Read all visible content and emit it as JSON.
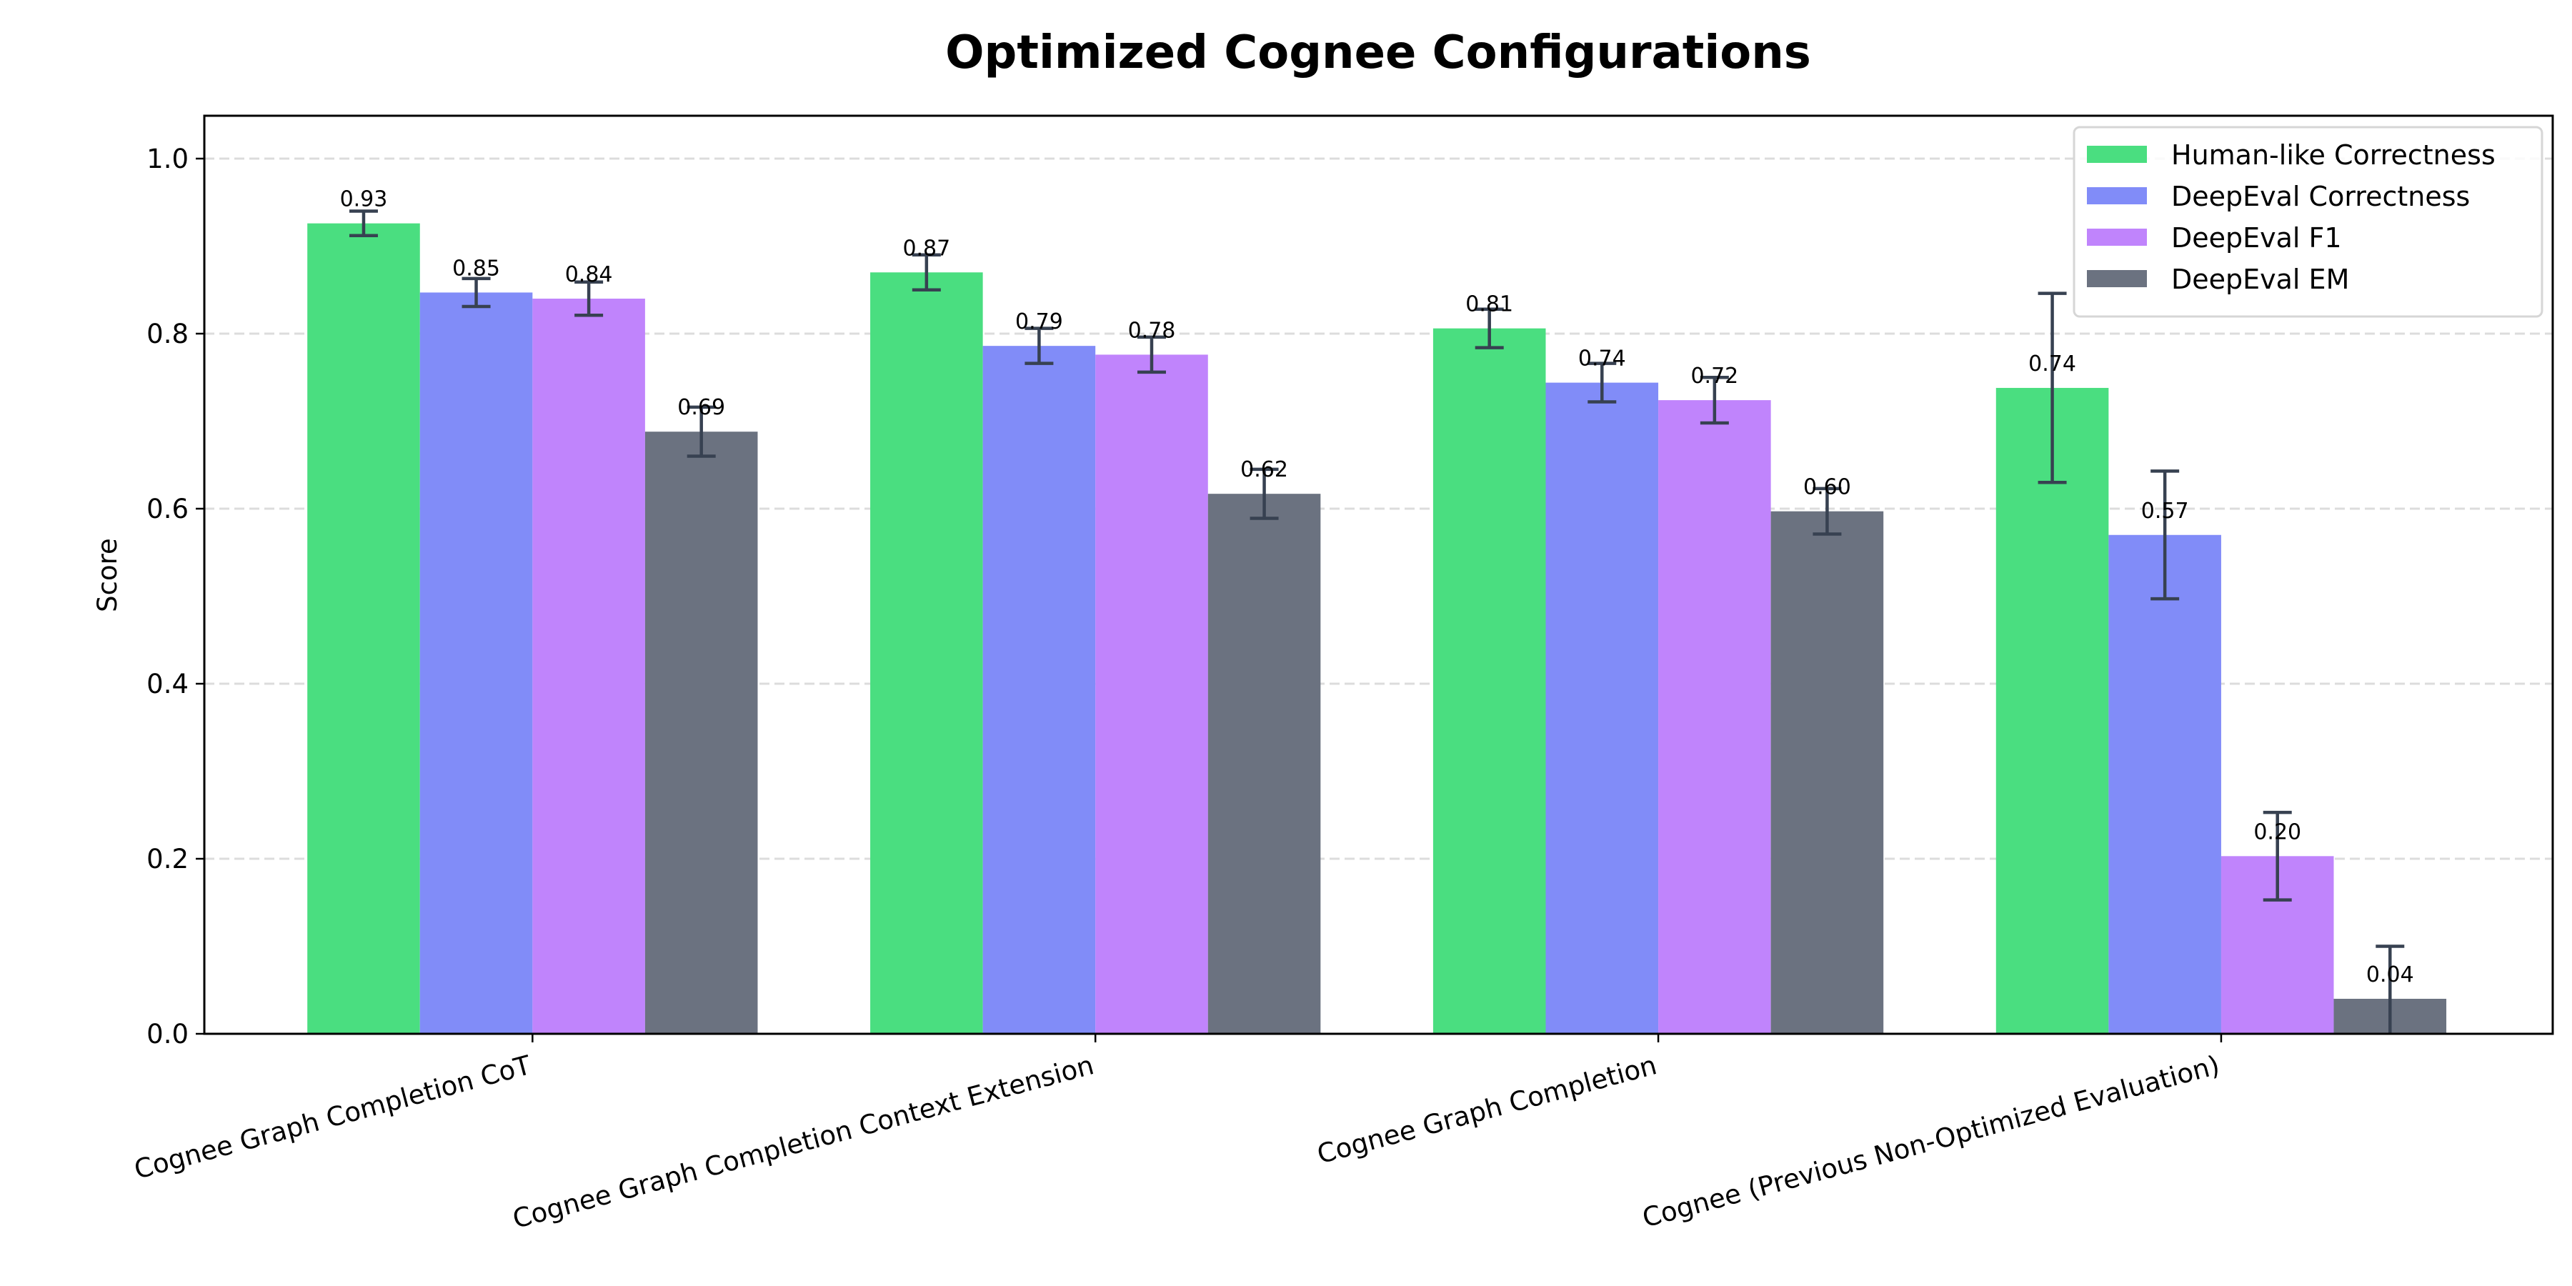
{
  "chart_data": {
    "type": "bar",
    "title": "Optimized Cognee Configurations",
    "xlabel": "",
    "ylabel": "Score",
    "ylim": [
      0,
      1.05
    ],
    "yticks": [
      "0.0",
      "0.2",
      "0.4",
      "0.6",
      "0.8",
      "1.0"
    ],
    "grid": "y-dashed",
    "legend_position": "top-right",
    "categories": [
      "Cognee Graph Completion CoT",
      "Cognee Graph Completion Context Extension",
      "Cognee Graph Completion",
      "Cognee (Previous Non-Optimized Evaluation)"
    ],
    "series": [
      {
        "name": "Human-like Correctness",
        "color": "#4ade80",
        "values": [
          0.926,
          0.87,
          0.806,
          0.738
        ],
        "errors": [
          0.014,
          0.02,
          0.022,
          0.108
        ],
        "labels": [
          "0.93",
          "0.87",
          "0.81",
          "0.74"
        ]
      },
      {
        "name": "DeepEval Correctness",
        "color": "#818cf8",
        "values": [
          0.847,
          0.786,
          0.744,
          0.57
        ],
        "errors": [
          0.016,
          0.02,
          0.022,
          0.073
        ],
        "labels": [
          "0.85",
          "0.79",
          "0.74",
          "0.57"
        ]
      },
      {
        "name": "DeepEval F1",
        "color": "#c084fc",
        "values": [
          0.84,
          0.776,
          0.724,
          0.203
        ],
        "errors": [
          0.019,
          0.02,
          0.026,
          0.05
        ],
        "labels": [
          "0.84",
          "0.78",
          "0.72",
          "0.20"
        ]
      },
      {
        "name": "DeepEval EM",
        "color": "#6b7280",
        "values": [
          0.688,
          0.617,
          0.597,
          0.04
        ],
        "errors": [
          0.028,
          0.028,
          0.026,
          0.06
        ],
        "labels": [
          "0.69",
          "0.62",
          "0.60",
          "0.04"
        ]
      }
    ],
    "error_bar_color": "#374151"
  }
}
